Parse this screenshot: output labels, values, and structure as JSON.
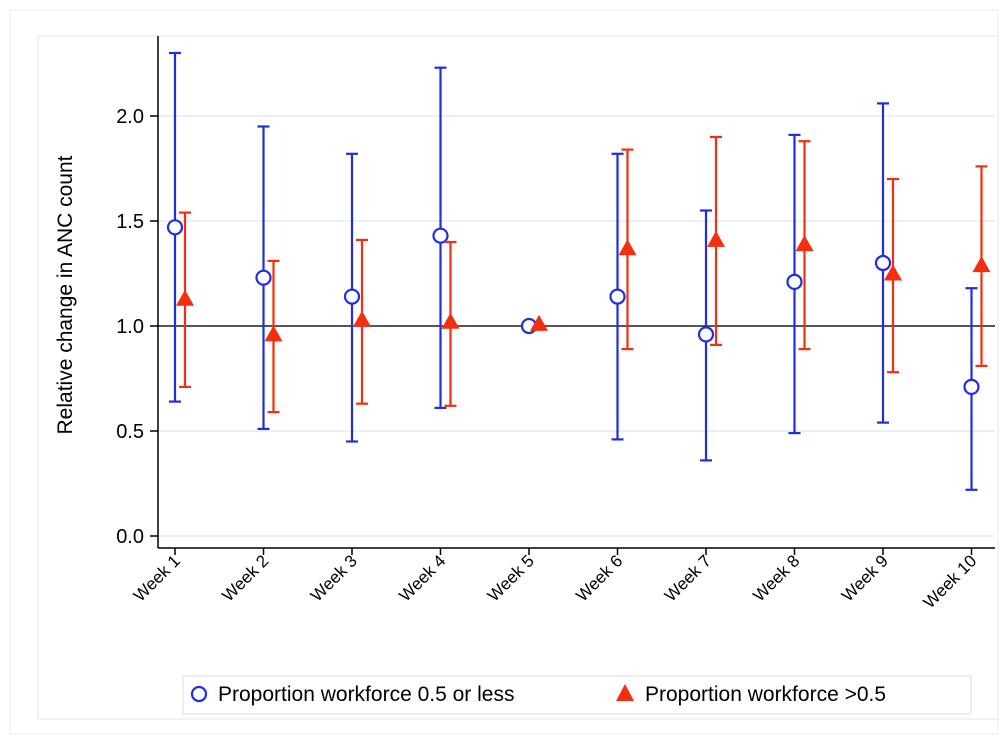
{
  "chart_data": {
    "type": "scatter",
    "title": "",
    "xlabel": "",
    "ylabel": "Relative change in ANC count",
    "categories": [
      "Week 1",
      "Week 2",
      "Week 3",
      "Week 4",
      "Week 5",
      "Week 6",
      "Week 7",
      "Week 8",
      "Week 9",
      "Week 10"
    ],
    "yticks": [
      "0.0",
      "0.5",
      "1.0",
      "1.5",
      "2.0"
    ],
    "ylim": [
      0,
      2.3
    ],
    "reference_line": 1.0,
    "grid": true,
    "legend_position": "bottom",
    "series": [
      {
        "name": "Proportion workforce 0.5 or less",
        "marker": "hollow-circle",
        "color": "#1f2ee0",
        "values": [
          1.47,
          1.23,
          1.14,
          1.43,
          1.0,
          1.14,
          0.96,
          1.21,
          1.3,
          0.71
        ],
        "lower": [
          0.64,
          0.51,
          0.45,
          0.61,
          1.0,
          0.46,
          0.36,
          0.49,
          0.54,
          0.22
        ],
        "upper": [
          2.3,
          1.95,
          1.82,
          2.23,
          1.0,
          1.82,
          1.55,
          1.91,
          2.06,
          1.18
        ]
      },
      {
        "name": "Proportion workforce >0.5",
        "marker": "filled-triangle",
        "color": "#f42f0f",
        "values": [
          1.13,
          0.96,
          1.03,
          1.02,
          1.01,
          1.37,
          1.41,
          1.39,
          1.25,
          1.29
        ],
        "lower": [
          0.71,
          0.59,
          0.63,
          0.62,
          1.01,
          0.89,
          0.91,
          0.89,
          0.78,
          0.81
        ],
        "upper": [
          1.54,
          1.31,
          1.41,
          1.4,
          1.01,
          1.84,
          1.9,
          1.88,
          1.7,
          1.76
        ]
      }
    ]
  }
}
